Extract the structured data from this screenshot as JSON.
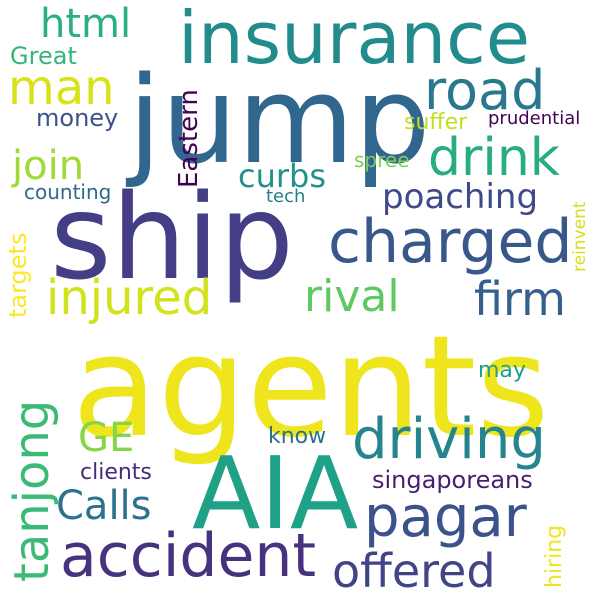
{
  "words": [
    {
      "id": "agents",
      "text": "agents",
      "color": "#efe51c"
    },
    {
      "id": "jump",
      "text": "jump",
      "color": "#31678e"
    },
    {
      "id": "ship",
      "text": "ship",
      "color": "#433e85"
    },
    {
      "id": "insurance",
      "text": "insurance",
      "color": "#228c8d"
    },
    {
      "id": "aia",
      "text": "AIA",
      "color": "#1fa187"
    },
    {
      "id": "charged",
      "text": "charged",
      "color": "#38588c"
    },
    {
      "id": "driving",
      "text": "driving",
      "color": "#25848e"
    },
    {
      "id": "accident",
      "text": "accident",
      "color": "#46327e"
    },
    {
      "id": "pagar",
      "text": "pagar",
      "color": "#3b528b"
    },
    {
      "id": "injured",
      "text": "injured",
      "color": "#d2e21b"
    },
    {
      "id": "drink",
      "text": "drink",
      "color": "#27ad81"
    },
    {
      "id": "road",
      "text": "road",
      "color": "#2a788e"
    },
    {
      "id": "man",
      "text": "man",
      "color": "#d8e219"
    },
    {
      "id": "rival",
      "text": "rival",
      "color": "#5ec962"
    },
    {
      "id": "firm",
      "text": "firm",
      "color": "#355f8d"
    },
    {
      "id": "tanjong",
      "text": "tanjong",
      "color": "#3aba76"
    },
    {
      "id": "offered",
      "text": "offered",
      "color": "#414487"
    },
    {
      "id": "html",
      "text": "html",
      "color": "#2ab07f"
    },
    {
      "id": "join",
      "text": "join",
      "color": "#a0da39"
    },
    {
      "id": "ge",
      "text": "GE",
      "color": "#86d549"
    },
    {
      "id": "calls",
      "text": "Calls",
      "color": "#2c728e"
    },
    {
      "id": "poaching",
      "text": "poaching",
      "color": "#3e4a89"
    },
    {
      "id": "curbs",
      "text": "curbs",
      "color": "#21918c"
    },
    {
      "id": "singaporeans",
      "text": "singaporeans",
      "color": "#481f70"
    },
    {
      "id": "eastern",
      "text": "Eastern",
      "color": "#440154"
    },
    {
      "id": "money",
      "text": "money",
      "color": "#3b528b"
    },
    {
      "id": "great",
      "text": "Great",
      "color": "#35b779"
    },
    {
      "id": "know",
      "text": "know",
      "color": "#2d708e"
    },
    {
      "id": "clients",
      "text": "clients",
      "color": "#472c7a"
    },
    {
      "id": "may",
      "text": "may",
      "color": "#1f9e89"
    },
    {
      "id": "suffer",
      "text": "suffer",
      "color": "#c2df23"
    },
    {
      "id": "prudential",
      "text": "prudential",
      "color": "#440154"
    },
    {
      "id": "spree",
      "text": "spree",
      "color": "#7ad151"
    },
    {
      "id": "counting",
      "text": "counting",
      "color": "#31688e"
    },
    {
      "id": "tech",
      "text": "tech",
      "color": "#287d8e"
    },
    {
      "id": "targets",
      "text": "targets",
      "color": "#fde725"
    },
    {
      "id": "reinvent",
      "text": "reinvent",
      "color": "#d0e11c"
    },
    {
      "id": "hiring",
      "text": "hiring",
      "color": "#f1e51d"
    }
  ]
}
